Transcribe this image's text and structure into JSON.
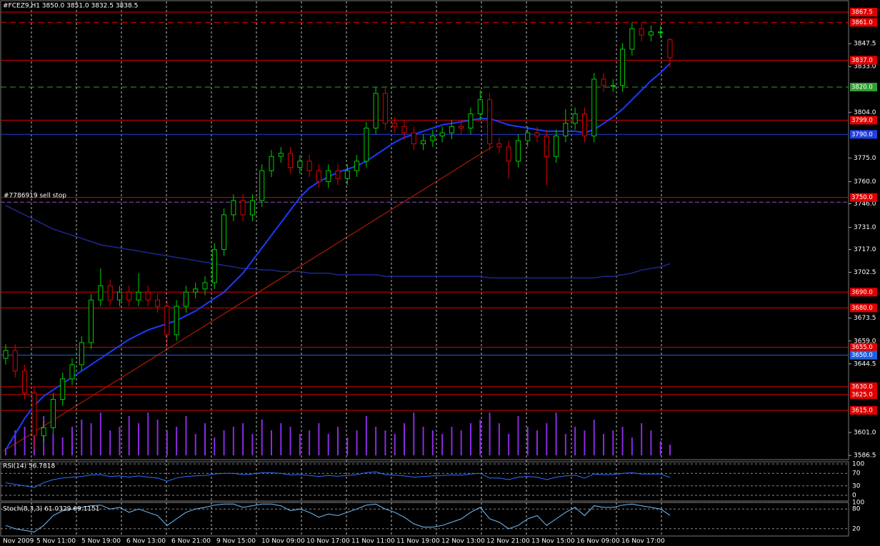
{
  "chart_data": {
    "type": "candlestick",
    "title": "#FCEZ9,H1  3850.0 3851.0 3832.5 3838.5",
    "open": [
      3648,
      3653,
      3640,
      3626,
      3599,
      3604,
      3622,
      3635,
      3644,
      3658,
      3685,
      3694,
      3685,
      3690,
      3685,
      3690,
      3685,
      3681,
      3663,
      3681,
      3690,
      3692,
      3696,
      3717,
      3739,
      3748,
      3739,
      3748,
      3767,
      3776,
      3778,
      3769,
      3773,
      3767,
      3760,
      3767,
      3762,
      3767,
      3773,
      3794,
      3816,
      3797,
      3795,
      3791,
      3784,
      3786,
      3789,
      3791,
      3795,
      3794,
      3803,
      3812,
      3784,
      3782,
      3773,
      3786,
      3791,
      3789,
      3776,
      3789,
      3797,
      3803,
      3789,
      3825,
      3821,
      3821,
      3844,
      3857,
      3853,
      3855,
      3850
    ],
    "high": [
      3657,
      3657,
      3644,
      3630,
      3608,
      3626,
      3639,
      3648,
      3662,
      3689,
      3705,
      3698,
      3694,
      3694,
      3702,
      3694,
      3689,
      3685,
      3685,
      3694,
      3696,
      3700,
      3721,
      3743,
      3752,
      3752,
      3752,
      3771,
      3780,
      3782,
      3782,
      3777,
      3777,
      3771,
      3771,
      3771,
      3771,
      3777,
      3798,
      3820,
      3820,
      3801,
      3799,
      3795,
      3790,
      3793,
      3795,
      3799,
      3799,
      3807,
      3818,
      3816,
      3788,
      3786,
      3790,
      3795,
      3795,
      3793,
      3793,
      3806,
      3807,
      3807,
      3829,
      3829,
      3825,
      3848,
      3861,
      3861,
      3859,
      3859,
      3851
    ],
    "low": [
      3644,
      3636,
      3622,
      3590,
      3595,
      3600,
      3618,
      3631,
      3640,
      3654,
      3681,
      3681,
      3681,
      3681,
      3681,
      3681,
      3677,
      3655,
      3659,
      3677,
      3686,
      3688,
      3692,
      3713,
      3735,
      3735,
      3735,
      3744,
      3763,
      3772,
      3765,
      3765,
      3763,
      3756,
      3756,
      3758,
      3758,
      3763,
      3769,
      3790,
      3793,
      3791,
      3787,
      3780,
      3780,
      3782,
      3785,
      3787,
      3790,
      3790,
      3799,
      3780,
      3778,
      3762,
      3769,
      3782,
      3785,
      3758,
      3772,
      3785,
      3793,
      3785,
      3785,
      3817,
      3817,
      3817,
      3840,
      3849,
      3849,
      3851,
      3832.5
    ],
    "close": [
      3653,
      3640,
      3626,
      3599,
      3604,
      3622,
      3635,
      3644,
      3658,
      3685,
      3694,
      3685,
      3690,
      3685,
      3690,
      3685,
      3681,
      3663,
      3681,
      3690,
      3692,
      3696,
      3717,
      3739,
      3748,
      3739,
      3748,
      3767,
      3776,
      3778,
      3769,
      3773,
      3767,
      3760,
      3767,
      3762,
      3767,
      3773,
      3794,
      3816,
      3797,
      3795,
      3791,
      3784,
      3786,
      3789,
      3791,
      3795,
      3794,
      3803,
      3812,
      3784,
      3782,
      3773,
      3786,
      3791,
      3789,
      3776,
      3789,
      3797,
      3803,
      3789,
      3825,
      3821,
      3821,
      3844,
      3857,
      3853,
      3855,
      3855,
      3838.5
    ],
    "volume": [
      10,
      35,
      40,
      45,
      55,
      30,
      25,
      40,
      50,
      45,
      60,
      35,
      40,
      55,
      45,
      60,
      50,
      35,
      40,
      55,
      30,
      45,
      25,
      35,
      40,
      45,
      30,
      50,
      35,
      45,
      40,
      30,
      35,
      45,
      30,
      40,
      25,
      35,
      55,
      40,
      35,
      30,
      45,
      60,
      40,
      35,
      30,
      40,
      35,
      45,
      50,
      60,
      45,
      30,
      55,
      40,
      35,
      45,
      60,
      30,
      40,
      35,
      50,
      30,
      35,
      40,
      25,
      45,
      35,
      20,
      15
    ],
    "ma_fast": [
      3590,
      3600,
      3610,
      3618,
      3624,
      3628,
      3632,
      3636,
      3640,
      3644,
      3648,
      3652,
      3656,
      3660,
      3663,
      3666,
      3668,
      3670,
      3672,
      3675,
      3678,
      3682,
      3686,
      3690,
      3696,
      3702,
      3710,
      3718,
      3726,
      3734,
      3742,
      3750,
      3756,
      3760,
      3763,
      3766,
      3768,
      3770,
      3773,
      3777,
      3781,
      3785,
      3788,
      3790,
      3792,
      3794,
      3796,
      3797,
      3798,
      3799,
      3800,
      3800,
      3798,
      3796,
      3795,
      3794,
      3793,
      3792,
      3792,
      3792,
      3792,
      3791,
      3793,
      3797,
      3801,
      3806,
      3812,
      3818,
      3824,
      3829,
      3835
    ],
    "ma_slow": [
      3745,
      3742,
      3739,
      3736,
      3733,
      3730,
      3728,
      3726,
      3724,
      3722,
      3720,
      3719,
      3718,
      3717,
      3716,
      3715,
      3714,
      3713,
      3712,
      3711,
      3710,
      3709,
      3708,
      3707,
      3706,
      3705,
      3705,
      3704,
      3704,
      3703,
      3703,
      3703,
      3702,
      3702,
      3702,
      3701,
      3701,
      3701,
      3701,
      3701,
      3700,
      3700,
      3700,
      3700,
      3700,
      3700,
      3700,
      3700,
      3700,
      3700,
      3700,
      3699,
      3699,
      3699,
      3699,
      3699,
      3699,
      3699,
      3699,
      3699,
      3699,
      3699,
      3699,
      3700,
      3700,
      3701,
      3702,
      3704,
      3705,
      3706,
      3708
    ],
    "colors": {
      "bull": "#00d000",
      "bear": "#e00000",
      "ma_fast": "#1a3cff",
      "ma_slow": "#1c2890",
      "volume": "#8a2be2"
    },
    "ylim": [
      3586.5,
      3867.5
    ],
    "yticks": [
      3847.5,
      {
        "value": 3833.0,
        "label": "3833.0"
      },
      {
        "value": 3804.0,
        "label": "3804.0"
      },
      {
        "value": 3775.0,
        "label": "3775.0"
      },
      {
        "value": 3760.0,
        "label": "3760.0"
      },
      {
        "value": 3746.0,
        "label": "3746.0"
      },
      {
        "value": 3731.0,
        "label": "3731.0"
      },
      {
        "value": 3717.0,
        "label": "3717.0"
      },
      3702.5,
      3673.5,
      {
        "value": 3659.0,
        "label": "3659.0"
      },
      3644.5,
      {
        "value": 3601.0,
        "label": "3601.0"
      },
      3586.5
    ],
    "levels": [
      {
        "value": 3867.5,
        "label": "3867.5",
        "color": "#e00000",
        "style": "solid"
      },
      {
        "value": 3861.0,
        "label": "3861.0",
        "color": "#e00000",
        "style": "dash"
      },
      {
        "value": 3837.0,
        "label": "3837.0",
        "color": "#e00000",
        "style": "solid"
      },
      {
        "value": 3820.0,
        "label": "3820.0",
        "color": "#30a030",
        "style": "dash"
      },
      {
        "value": 3799.0,
        "label": "3799.0",
        "color": "#e00000",
        "style": "solid"
      },
      {
        "value": 3790.0,
        "label": "3790.0",
        "color": "#2040e0",
        "style": "solid"
      },
      {
        "value": 3750.0,
        "label": "3750.0",
        "color": "#e00000",
        "style": "solid"
      },
      {
        "value": 3690.0,
        "label": "3690.0",
        "color": "#e00000",
        "style": "solid"
      },
      {
        "value": 3680.0,
        "label": "3680.0",
        "color": "#e00000",
        "style": "solid"
      },
      {
        "value": 3655.0,
        "label": "3655.0",
        "color": "#e00000",
        "style": "solid"
      },
      {
        "value": 3650.0,
        "label": "3650.0",
        "color": "#2060e0",
        "style": "solid"
      },
      {
        "value": 3630.0,
        "label": "3630.0",
        "color": "#e00000",
        "style": "solid"
      },
      {
        "value": 3625.0,
        "label": "3625.0",
        "color": "#e00000",
        "style": "solid"
      },
      {
        "value": 3615.0,
        "label": "3615.0",
        "color": "#e00000",
        "style": "solid"
      }
    ],
    "order": {
      "label": "#7786919 sell stop",
      "value": 3747.0,
      "color": "#9050c0"
    },
    "time_labels": [
      "Nov 2009",
      "5 Nov 11:00",
      "5 Nov 19:00",
      "6 Nov 13:00",
      "6 Nov 21:00",
      "9 Nov 15:00",
      "10 Nov 09:00",
      "10 Nov 17:00",
      "11 Nov 11:00",
      "11 Nov 19:00",
      "12 Nov 13:00",
      "12 Nov 21:00",
      "13 Nov 15:00",
      "16 Nov 09:00",
      "16 Nov 17:00"
    ],
    "rsi": {
      "title": "RSI(14) 56.7818",
      "ylim": [
        0,
        100
      ],
      "yticks": [
        100,
        70,
        30,
        0
      ],
      "color": "#3070ff",
      "values": [
        40,
        35,
        30,
        25,
        40,
        50,
        55,
        58,
        60,
        65,
        66,
        60,
        62,
        58,
        62,
        58,
        55,
        45,
        55,
        60,
        62,
        63,
        68,
        70,
        70,
        66,
        68,
        72,
        72,
        70,
        65,
        66,
        63,
        60,
        63,
        61,
        63,
        66,
        72,
        75,
        66,
        64,
        62,
        58,
        60,
        62,
        63,
        65,
        64,
        68,
        70,
        55,
        55,
        50,
        58,
        60,
        58,
        50,
        58,
        62,
        64,
        55,
        68,
        66,
        66,
        70,
        72,
        68,
        68,
        68,
        56.7818
      ]
    },
    "stoch": {
      "title": "Stoch(8,3,3) 61.0329 69.1151",
      "ylim": [
        0,
        100
      ],
      "yticks": [
        100,
        80,
        20
      ],
      "color": "#70c0ff",
      "values": [
        30,
        20,
        15,
        10,
        30,
        60,
        75,
        80,
        85,
        90,
        92,
        80,
        85,
        70,
        80,
        70,
        60,
        30,
        50,
        70,
        80,
        85,
        92,
        95,
        95,
        85,
        90,
        95,
        95,
        90,
        75,
        80,
        70,
        55,
        65,
        60,
        70,
        80,
        92,
        95,
        80,
        70,
        55,
        35,
        25,
        25,
        30,
        40,
        50,
        70,
        85,
        50,
        40,
        20,
        30,
        50,
        60,
        30,
        50,
        70,
        85,
        60,
        90,
        85,
        85,
        92,
        95,
        90,
        85,
        80,
        61.0329
      ]
    }
  }
}
